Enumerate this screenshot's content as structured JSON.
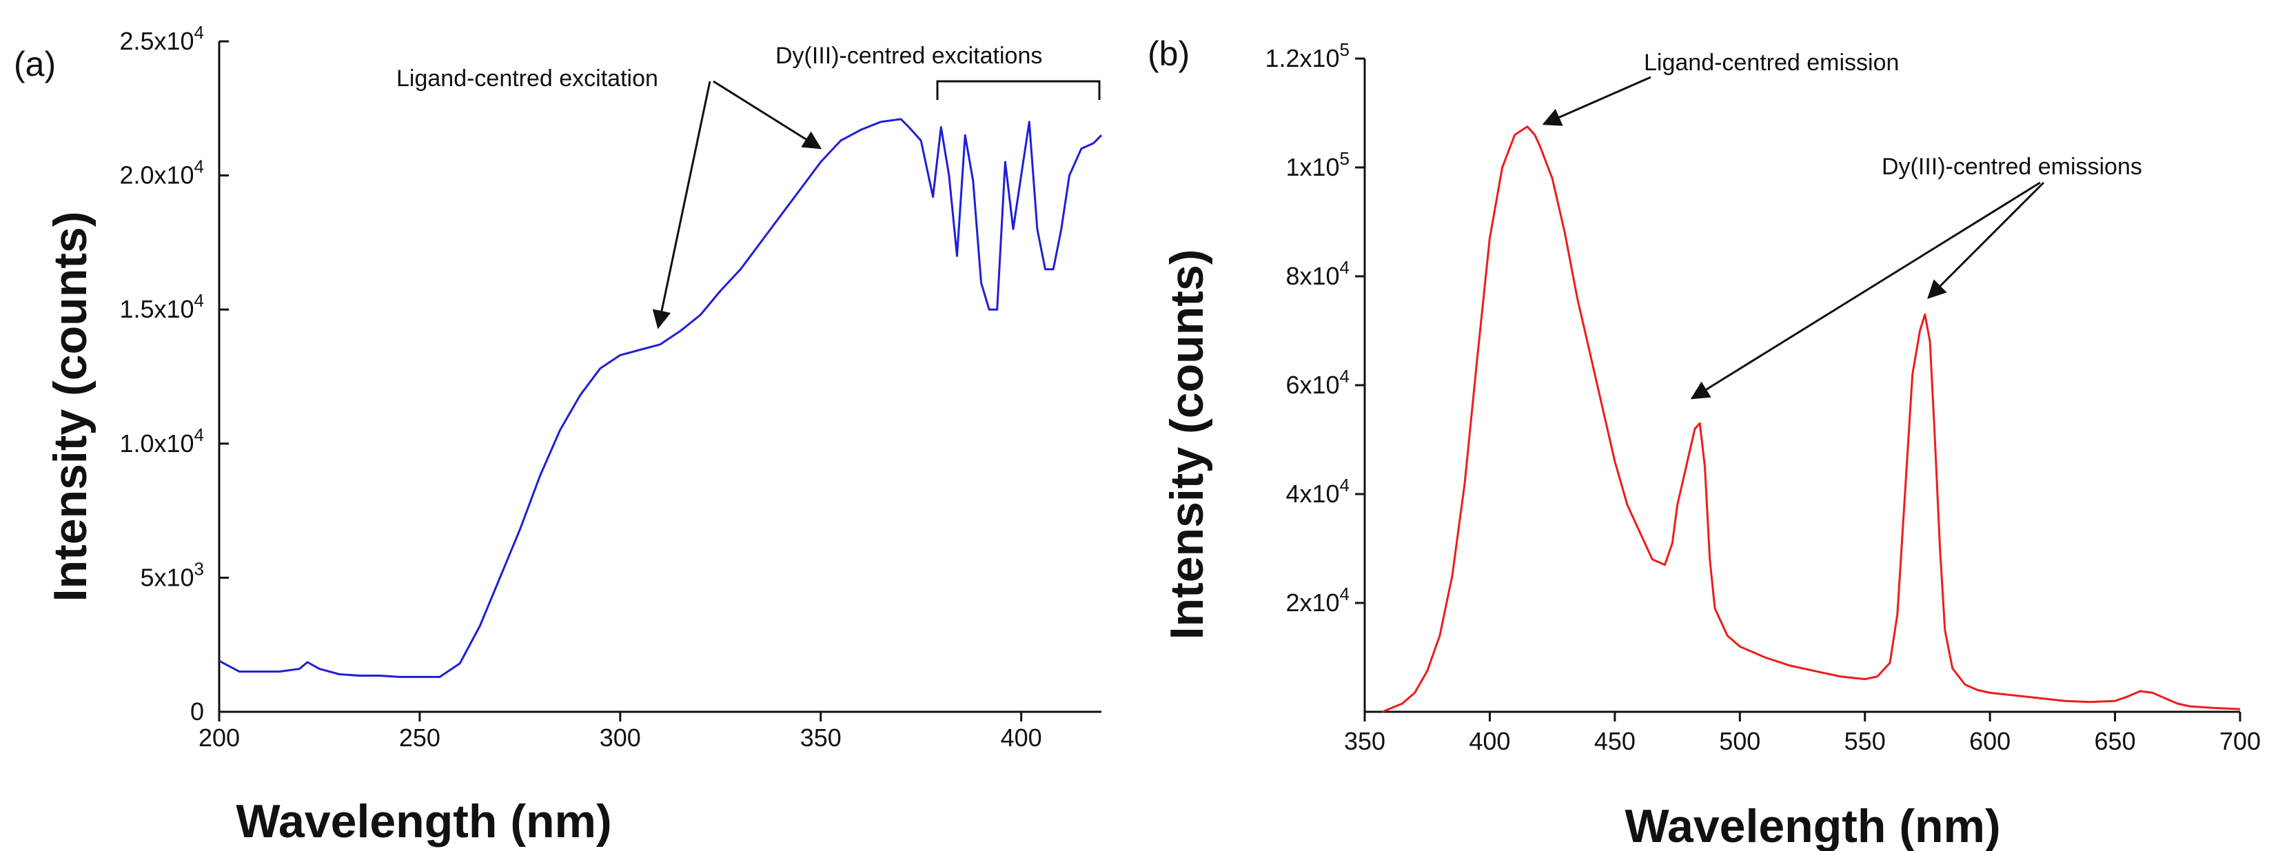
{
  "chart_data": [
    {
      "type": "line",
      "panel_label": "(a)",
      "xlabel": "Wavelength (nm)",
      "ylabel": "Intensity (counts)",
      "xlim": [
        200,
        420
      ],
      "ylim": [
        0,
        25000
      ],
      "xticks": [
        200,
        250,
        300,
        350,
        400
      ],
      "xtick_labels": [
        "200",
        "250",
        "300",
        "350",
        "400"
      ],
      "yticks": [
        0,
        5000,
        10000,
        15000,
        20000,
        25000
      ],
      "ytick_labels": [
        {
          "base": "0",
          "exp": ""
        },
        {
          "base": "5x10",
          "exp": "3"
        },
        {
          "base": "1.0x10",
          "exp": "4"
        },
        {
          "base": "1.5x10",
          "exp": "4"
        },
        {
          "base": "2.0x10",
          "exp": "4"
        },
        {
          "base": "2.5x10",
          "exp": "4"
        }
      ],
      "color": "#1f1fd6",
      "series": [
        {
          "name": "excitation",
          "x": [
            200,
            205,
            210,
            215,
            220,
            222,
            225,
            230,
            235,
            240,
            245,
            250,
            255,
            260,
            265,
            270,
            275,
            280,
            285,
            290,
            295,
            300,
            305,
            310,
            315,
            320,
            325,
            330,
            335,
            340,
            345,
            350,
            355,
            360,
            365,
            370,
            372,
            375,
            378,
            380,
            382,
            384,
            386,
            388,
            390,
            392,
            394,
            396,
            398,
            400,
            402,
            404,
            406,
            408,
            410,
            412,
            415,
            418,
            420
          ],
          "y": [
            1900,
            1500,
            1500,
            1500,
            1600,
            1850,
            1600,
            1400,
            1350,
            1350,
            1300,
            1300,
            1300,
            1800,
            3200,
            5000,
            6800,
            8800,
            10500,
            11800,
            12800,
            13300,
            13500,
            13700,
            14200,
            14800,
            15700,
            16500,
            17500,
            18500,
            19500,
            20500,
            21300,
            21700,
            22000,
            22100,
            21800,
            21300,
            19200,
            21800,
            20000,
            17000,
            21500,
            19800,
            16000,
            15000,
            15000,
            20500,
            18000,
            20000,
            22000,
            18000,
            16500,
            16500,
            18000,
            20000,
            21000,
            21200,
            21500
          ]
        }
      ],
      "annotations": [
        {
          "text": "Ligand-centred excitation"
        },
        {
          "text": "Dy(III)-centred excitations"
        }
      ]
    },
    {
      "type": "line",
      "panel_label": "(b)",
      "xlabel": "Wavelength (nm)",
      "ylabel": "Intensity (counts)",
      "xlim": [
        350,
        700
      ],
      "ylim": [
        0,
        120000
      ],
      "xticks": [
        350,
        400,
        450,
        500,
        550,
        600,
        650,
        700
      ],
      "xtick_labels": [
        "350",
        "400",
        "450",
        "500",
        "550",
        "600",
        "650",
        "700"
      ],
      "yticks": [
        20000,
        40000,
        60000,
        80000,
        100000,
        120000
      ],
      "ytick_labels": [
        {
          "base": "2x10",
          "exp": "4"
        },
        {
          "base": "4x10",
          "exp": "4"
        },
        {
          "base": "6x10",
          "exp": "4"
        },
        {
          "base": "8x10",
          "exp": "4"
        },
        {
          "base": "1x10",
          "exp": "5"
        },
        {
          "base": "1.2x10",
          "exp": "5"
        }
      ],
      "color": "#ee1c1c",
      "series": [
        {
          "name": "emission",
          "x": [
            357,
            365,
            370,
            375,
            380,
            385,
            390,
            395,
            400,
            405,
            410,
            415,
            418,
            420,
            425,
            430,
            435,
            440,
            445,
            450,
            455,
            460,
            465,
            470,
            473,
            475,
            478,
            480,
            482,
            484,
            486,
            488,
            490,
            495,
            500,
            510,
            520,
            530,
            540,
            550,
            555,
            560,
            563,
            566,
            569,
            572,
            574,
            576,
            578,
            580,
            582,
            585,
            590,
            595,
            600,
            610,
            620,
            630,
            640,
            650,
            655,
            660,
            665,
            670,
            675,
            680,
            690,
            700
          ],
          "y": [
            0,
            1500,
            3500,
            7500,
            14000,
            25000,
            42000,
            65000,
            87000,
            100000,
            106000,
            107500,
            106000,
            104000,
            98000,
            88000,
            76000,
            66000,
            56000,
            46000,
            38000,
            33000,
            28000,
            27000,
            31000,
            38000,
            44000,
            48000,
            52000,
            53000,
            45000,
            28000,
            19000,
            14000,
            12000,
            10000,
            8500,
            7500,
            6500,
            6000,
            6500,
            9000,
            18000,
            40000,
            62000,
            70000,
            73000,
            68000,
            50000,
            30000,
            15000,
            8000,
            5000,
            4000,
            3500,
            3000,
            2500,
            2000,
            1800,
            2000,
            2800,
            3800,
            3500,
            2500,
            1500,
            1000,
            700,
            500
          ]
        }
      ],
      "annotations": [
        {
          "text": "Ligand-centred emission"
        },
        {
          "text": "Dy(III)-centred emissions"
        }
      ]
    }
  ]
}
